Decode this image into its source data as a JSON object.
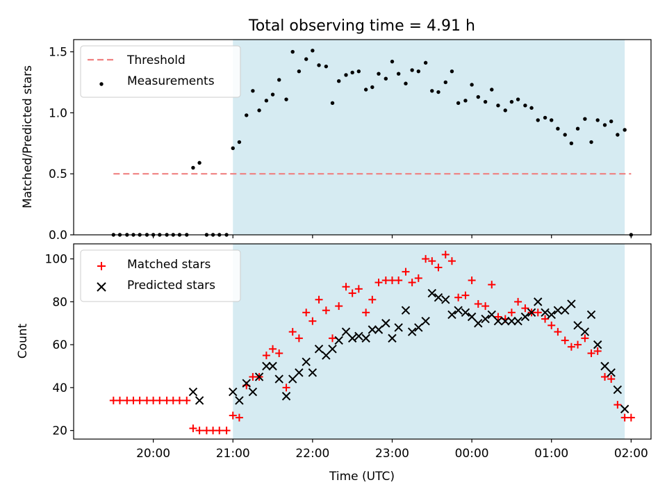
{
  "chart_data": [
    {
      "type": "scatter",
      "title": "Total observing time = 4.91 h",
      "ylabel": "Matched/Predicted stars",
      "xlabel": "",
      "ylim": [
        0,
        1.6
      ],
      "yticks": [
        0.0,
        0.5,
        1.0,
        1.5
      ],
      "ytick_labels": [
        "0.0",
        "0.5",
        "1.0",
        "1.5"
      ],
      "grid": false,
      "legend_position": "top-left",
      "legend": [
        "Threshold",
        "Measurements"
      ],
      "threshold": {
        "name": "Threshold",
        "y": 0.5,
        "x_start": 19.5,
        "x_end": 26.0,
        "color": "#f08080",
        "style": "dashed"
      },
      "shaded_interval": {
        "x_start": 21.0,
        "x_end": 25.92,
        "color": "#add8e6"
      },
      "series": [
        {
          "name": "Measurements",
          "color": "#000000",
          "marker": "dot",
          "x": [
            19.5,
            19.58,
            19.67,
            19.75,
            19.83,
            19.92,
            20.0,
            20.08,
            20.17,
            20.25,
            20.33,
            20.42,
            20.5,
            20.58,
            20.67,
            20.75,
            20.83,
            20.92,
            21.0,
            21.08,
            21.17,
            21.25,
            21.33,
            21.42,
            21.5,
            21.58,
            21.67,
            21.75,
            21.83,
            21.92,
            22.0,
            22.08,
            22.17,
            22.25,
            22.33,
            22.42,
            22.5,
            22.58,
            22.67,
            22.75,
            22.83,
            22.92,
            23.0,
            23.08,
            23.17,
            23.25,
            23.33,
            23.42,
            23.5,
            23.58,
            23.67,
            23.75,
            23.83,
            23.92,
            24.0,
            24.08,
            24.17,
            24.25,
            24.33,
            24.42,
            24.5,
            24.58,
            24.67,
            24.75,
            24.83,
            24.92,
            25.0,
            25.08,
            25.17,
            25.25,
            25.33,
            25.42,
            25.5,
            25.58,
            25.67,
            25.75,
            25.83,
            25.92,
            26.0
          ],
          "y": [
            0,
            0,
            0,
            0,
            0,
            0,
            0,
            0,
            0,
            0,
            0,
            0,
            0.55,
            0.59,
            0,
            0,
            0,
            0,
            0.71,
            0.76,
            0.98,
            1.18,
            1.02,
            1.1,
            1.15,
            1.27,
            1.11,
            1.5,
            1.34,
            1.44,
            1.51,
            1.39,
            1.38,
            1.08,
            1.26,
            1.31,
            1.33,
            1.34,
            1.19,
            1.21,
            1.32,
            1.28,
            1.42,
            1.32,
            1.24,
            1.35,
            1.34,
            1.41,
            1.18,
            1.17,
            1.25,
            1.34,
            1.08,
            1.1,
            1.23,
            1.13,
            1.09,
            1.19,
            1.06,
            1.02,
            1.09,
            1.11,
            1.06,
            1.04,
            0.94,
            0.96,
            0.94,
            0.87,
            0.82,
            0.75,
            0.87,
            0.95,
            0.76,
            0.94,
            0.9,
            0.93,
            0.82,
            0.86,
            0.0
          ]
        }
      ]
    },
    {
      "type": "scatter",
      "title": "",
      "ylabel": "Count",
      "xlabel": "Time (UTC)",
      "ylim": [
        16,
        107
      ],
      "yticks": [
        20,
        40,
        60,
        80,
        100
      ],
      "ytick_labels": [
        "20",
        "40",
        "60",
        "80",
        "100"
      ],
      "xlim": [
        19.0,
        26.25
      ],
      "xticks": [
        20,
        21,
        22,
        23,
        24,
        25,
        26
      ],
      "xtick_labels": [
        "20:00",
        "21:00",
        "22:00",
        "23:00",
        "00:00",
        "01:00",
        "02:00"
      ],
      "grid": false,
      "legend_position": "top-left",
      "legend": [
        "Matched stars",
        "Predicted stars"
      ],
      "shaded_interval": {
        "x_start": 21.0,
        "x_end": 25.92,
        "color": "#add8e6"
      },
      "series": [
        {
          "name": "Matched stars",
          "color": "#ff0000",
          "marker": "plus",
          "x": [
            19.5,
            19.58,
            19.67,
            19.75,
            19.83,
            19.92,
            20.0,
            20.08,
            20.17,
            20.25,
            20.33,
            20.42,
            20.5,
            20.58,
            20.67,
            20.75,
            20.83,
            20.92,
            21.0,
            21.08,
            21.17,
            21.25,
            21.33,
            21.42,
            21.5,
            21.58,
            21.67,
            21.75,
            21.83,
            21.92,
            22.0,
            22.08,
            22.17,
            22.25,
            22.33,
            22.42,
            22.5,
            22.58,
            22.67,
            22.75,
            22.83,
            22.92,
            23.0,
            23.08,
            23.17,
            23.25,
            23.33,
            23.42,
            23.5,
            23.58,
            23.67,
            23.75,
            23.83,
            23.92,
            24.0,
            24.08,
            24.17,
            24.25,
            24.33,
            24.42,
            24.5,
            24.58,
            24.67,
            24.75,
            24.83,
            24.92,
            25.0,
            25.08,
            25.17,
            25.25,
            25.33,
            25.42,
            25.5,
            25.58,
            25.67,
            25.75,
            25.83,
            25.92,
            26.0
          ],
          "y": [
            34,
            34,
            34,
            34,
            34,
            34,
            34,
            34,
            34,
            34,
            34,
            34,
            21,
            20,
            20,
            20,
            20,
            20,
            27,
            26,
            41,
            45,
            45,
            55,
            58,
            56,
            40,
            66,
            63,
            75,
            71,
            81,
            76,
            63,
            78,
            87,
            84,
            86,
            75,
            81,
            89,
            90,
            90,
            90,
            94,
            89,
            91,
            100,
            99,
            96,
            102,
            99,
            82,
            83,
            90,
            79,
            78,
            88,
            73,
            72,
            75,
            80,
            77,
            75,
            75,
            72,
            69,
            66,
            62,
            59,
            60,
            63,
            56,
            57,
            45,
            44,
            32,
            26,
            26
          ]
        },
        {
          "name": "Predicted stars",
          "color": "#000000",
          "marker": "x",
          "x": [
            20.5,
            20.58,
            21.0,
            21.08,
            21.17,
            21.25,
            21.33,
            21.42,
            21.5,
            21.58,
            21.67,
            21.75,
            21.83,
            21.92,
            22.0,
            22.08,
            22.17,
            22.25,
            22.33,
            22.42,
            22.5,
            22.58,
            22.67,
            22.75,
            22.83,
            22.92,
            23.0,
            23.08,
            23.17,
            23.25,
            23.33,
            23.42,
            23.5,
            23.58,
            23.67,
            23.75,
            23.83,
            23.92,
            24.0,
            24.08,
            24.17,
            24.25,
            24.33,
            24.42,
            24.5,
            24.58,
            24.67,
            24.75,
            24.83,
            24.92,
            25.0,
            25.08,
            25.17,
            25.25,
            25.33,
            25.42,
            25.5,
            25.58,
            25.67,
            25.75,
            25.83,
            25.92
          ],
          "y": [
            38,
            34,
            38,
            34,
            42,
            38,
            45,
            50,
            50,
            44,
            36,
            44,
            47,
            52,
            47,
            58,
            55,
            58,
            62,
            66,
            63,
            64,
            63,
            67,
            67,
            70,
            63,
            68,
            76,
            66,
            68,
            71,
            84,
            82,
            81,
            74,
            76,
            75,
            73,
            70,
            72,
            74,
            71,
            71,
            71,
            71,
            73,
            75,
            80,
            75,
            74,
            76,
            76,
            79,
            69,
            66,
            74,
            60,
            50,
            47,
            39,
            30
          ]
        }
      ]
    }
  ]
}
